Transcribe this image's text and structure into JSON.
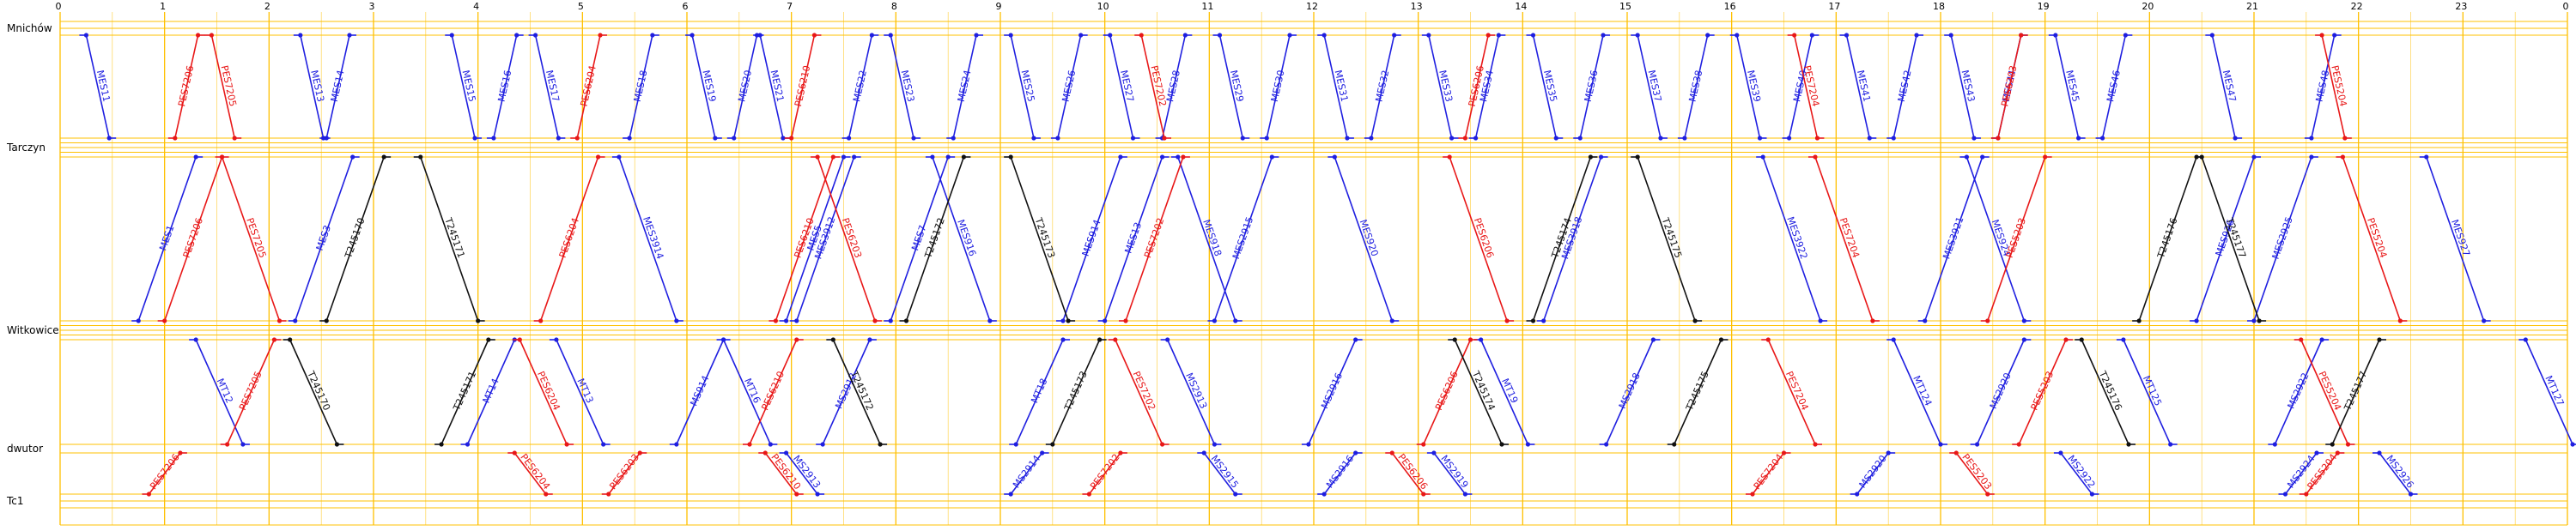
{
  "stations": [
    {
      "name": "Mnichów",
      "tracks": 3
    },
    {
      "name": "Tarczyn",
      "tracks": 5
    },
    {
      "name": "Witkowice",
      "tracks": 5
    },
    {
      "name": "dwutor",
      "tracks": 2
    },
    {
      "name": "Tc1",
      "tracks": 3
    }
  ],
  "hours": [
    "0",
    "1",
    "2",
    "3",
    "4",
    "5",
    "6",
    "7",
    "8",
    "9",
    "10",
    "11",
    "12",
    "13",
    "14",
    "15",
    "16",
    "17",
    "18",
    "19",
    "20",
    "21",
    "22",
    "23",
    "0"
  ],
  "colors": {
    "grid": "#ffc000",
    "blue": "#1f1fe0",
    "red": "#e81818",
    "black": "#111111"
  },
  "trains": [
    {
      "label": "MES11",
      "color": "blue",
      "dir": "down",
      "seg": "s0",
      "t": 0.25
    },
    {
      "label": "MES13",
      "color": "blue",
      "dir": "down",
      "seg": "s0",
      "t": 2.3
    },
    {
      "label": "MES14",
      "color": "blue",
      "dir": "up",
      "seg": "s0",
      "t": 2.55
    },
    {
      "label": "MES15",
      "color": "blue",
      "dir": "down",
      "seg": "s0",
      "t": 3.75
    },
    {
      "label": "MES16",
      "color": "blue",
      "dir": "up",
      "seg": "s0",
      "t": 4.15
    },
    {
      "label": "MES17",
      "color": "blue",
      "dir": "down",
      "seg": "s0",
      "t": 4.55
    },
    {
      "label": "MES18",
      "color": "blue",
      "dir": "up",
      "seg": "s0",
      "t": 5.45
    },
    {
      "label": "MES19",
      "color": "blue",
      "dir": "down",
      "seg": "s0",
      "t": 6.05
    },
    {
      "label": "MES20",
      "color": "blue",
      "dir": "up",
      "seg": "s0",
      "t": 6.45
    },
    {
      "label": "MES21",
      "color": "blue",
      "dir": "down",
      "seg": "s0",
      "t": 6.7
    },
    {
      "label": "MES22",
      "color": "blue",
      "dir": "up",
      "seg": "s0",
      "t": 7.55
    },
    {
      "label": "MES23",
      "color": "blue",
      "dir": "down",
      "seg": "s0",
      "t": 7.95
    },
    {
      "label": "MES24",
      "color": "blue",
      "dir": "up",
      "seg": "s0",
      "t": 8.55
    },
    {
      "label": "MES25",
      "color": "blue",
      "dir": "down",
      "seg": "s0",
      "t": 9.1
    },
    {
      "label": "MES26",
      "color": "blue",
      "dir": "up",
      "seg": "s0",
      "t": 9.55
    },
    {
      "label": "MES27",
      "color": "blue",
      "dir": "down",
      "seg": "s0",
      "t": 10.05
    },
    {
      "label": "MES28",
      "color": "blue",
      "dir": "up",
      "seg": "s0",
      "t": 10.55
    },
    {
      "label": "MES29",
      "color": "blue",
      "dir": "down",
      "seg": "s0",
      "t": 11.1
    },
    {
      "label": "MES30",
      "color": "blue",
      "dir": "up",
      "seg": "s0",
      "t": 11.55
    },
    {
      "label": "MES31",
      "color": "blue",
      "dir": "down",
      "seg": "s0",
      "t": 12.1
    },
    {
      "label": "MES32",
      "color": "blue",
      "dir": "up",
      "seg": "s0",
      "t": 12.55
    },
    {
      "label": "MES33",
      "color": "blue",
      "dir": "down",
      "seg": "s0",
      "t": 13.1
    },
    {
      "label": "MES34",
      "color": "blue",
      "dir": "up",
      "seg": "s0",
      "t": 13.55
    },
    {
      "label": "MES35",
      "color": "blue",
      "dir": "down",
      "seg": "s0",
      "t": 14.1
    },
    {
      "label": "MES36",
      "color": "blue",
      "dir": "up",
      "seg": "s0",
      "t": 14.55
    },
    {
      "label": "MES37",
      "color": "blue",
      "dir": "down",
      "seg": "s0",
      "t": 15.1
    },
    {
      "label": "MES38",
      "color": "blue",
      "dir": "up",
      "seg": "s0",
      "t": 15.55
    },
    {
      "label": "MES39",
      "color": "blue",
      "dir": "down",
      "seg": "s0",
      "t": 16.05
    },
    {
      "label": "MES40",
      "color": "blue",
      "dir": "up",
      "seg": "s0",
      "t": 16.55
    },
    {
      "label": "MES41",
      "color": "blue",
      "dir": "down",
      "seg": "s0",
      "t": 17.1
    },
    {
      "label": "MES42",
      "color": "blue",
      "dir": "up",
      "seg": "s0",
      "t": 17.55
    },
    {
      "label": "MES43",
      "color": "blue",
      "dir": "down",
      "seg": "s0",
      "t": 18.1
    },
    {
      "label": "MES44",
      "color": "blue",
      "dir": "up",
      "seg": "s0",
      "t": 18.55
    },
    {
      "label": "MES45",
      "color": "blue",
      "dir": "down",
      "seg": "s0",
      "t": 19.1
    },
    {
      "label": "MES46",
      "color": "blue",
      "dir": "up",
      "seg": "s0",
      "t": 19.55
    },
    {
      "label": "MES47",
      "color": "blue",
      "dir": "down",
      "seg": "s0",
      "t": 20.6
    },
    {
      "label": "MES48",
      "color": "blue",
      "dir": "up",
      "seg": "s0",
      "t": 21.55
    },
    {
      "label": "PES7206",
      "color": "red",
      "dir": "up",
      "seg": "s0",
      "t": 1.1
    },
    {
      "label": "PES7205",
      "color": "red",
      "dir": "down",
      "seg": "s0",
      "t": 1.45
    },
    {
      "label": "PES6204",
      "color": "red",
      "dir": "up",
      "seg": "s0",
      "t": 4.95
    },
    {
      "label": "PES6210",
      "color": "red",
      "dir": "up",
      "seg": "s0",
      "t": 7.0
    },
    {
      "label": "PES7202",
      "color": "red",
      "dir": "down",
      "seg": "s0",
      "t": 10.35
    },
    {
      "label": "PES6206",
      "color": "red",
      "dir": "up",
      "seg": "s0",
      "t": 13.45
    },
    {
      "label": "PES7204",
      "color": "red",
      "dir": "down",
      "seg": "s0",
      "t": 16.6
    },
    {
      "label": "PES6203",
      "color": "red",
      "dir": "up",
      "seg": "s0",
      "t": 18.55
    },
    {
      "label": "PES5204",
      "color": "red",
      "dir": "down",
      "seg": "s0",
      "t": 21.65
    },
    {
      "label": "MES1",
      "color": "blue",
      "dir": "up",
      "seg": "s1",
      "t": 0.75
    },
    {
      "label": "MES3",
      "color": "blue",
      "dir": "up",
      "seg": "s1",
      "t": 2.25
    },
    {
      "label": "MES3914",
      "color": "blue",
      "dir": "down",
      "seg": "s1",
      "t": 5.35
    },
    {
      "label": "MES5",
      "color": "blue",
      "dir": "up",
      "seg": "s1",
      "t": 6.95
    },
    {
      "label": "MES3912",
      "color": "blue",
      "dir": "up",
      "seg": "s1",
      "t": 7.05
    },
    {
      "label": "MES7",
      "color": "blue",
      "dir": "up",
      "seg": "s1",
      "t": 7.95
    },
    {
      "label": "MES916",
      "color": "blue",
      "dir": "down",
      "seg": "s1",
      "t": 8.35
    },
    {
      "label": "MES914",
      "color": "blue",
      "dir": "up",
      "seg": "s1",
      "t": 9.6
    },
    {
      "label": "MES13",
      "color": "blue",
      "dir": "up",
      "seg": "s1",
      "t": 10.0
    },
    {
      "label": "MES918",
      "color": "blue",
      "dir": "down",
      "seg": "s1",
      "t": 10.7
    },
    {
      "label": "MES2915",
      "color": "blue",
      "dir": "up",
      "seg": "s1",
      "t": 11.05
    },
    {
      "label": "MES920",
      "color": "blue",
      "dir": "down",
      "seg": "s1",
      "t": 12.2
    },
    {
      "label": "MES3918",
      "color": "blue",
      "dir": "up",
      "seg": "s1",
      "t": 14.2
    },
    {
      "label": "MES3922",
      "color": "blue",
      "dir": "down",
      "seg": "s1",
      "t": 16.3
    },
    {
      "label": "MES3921",
      "color": "blue",
      "dir": "up",
      "seg": "s1",
      "t": 17.85
    },
    {
      "label": "MES924",
      "color": "blue",
      "dir": "down",
      "seg": "s1",
      "t": 18.25
    },
    {
      "label": "MES926",
      "color": "blue",
      "dir": "up",
      "seg": "s1",
      "t": 20.45
    },
    {
      "label": "MES2925",
      "color": "blue",
      "dir": "up",
      "seg": "s1",
      "t": 21.0
    },
    {
      "label": "MES927",
      "color": "blue",
      "dir": "down",
      "seg": "s1",
      "t": 22.65
    },
    {
      "label": "PES7206",
      "color": "red",
      "dir": "up",
      "seg": "s1",
      "t": 1.0
    },
    {
      "label": "PES7205",
      "color": "red",
      "dir": "down",
      "seg": "s1",
      "t": 1.55
    },
    {
      "label": "PES6204",
      "color": "red",
      "dir": "up",
      "seg": "s1",
      "t": 4.6
    },
    {
      "label": "PES6210",
      "color": "red",
      "dir": "up",
      "seg": "s1",
      "t": 6.85
    },
    {
      "label": "PES6203",
      "color": "red",
      "dir": "down",
      "seg": "s1",
      "t": 7.25
    },
    {
      "label": "PES7202",
      "color": "red",
      "dir": "up",
      "seg": "s1",
      "t": 10.2
    },
    {
      "label": "PES6206",
      "color": "red",
      "dir": "down",
      "seg": "s1",
      "t": 13.3
    },
    {
      "label": "PES7204",
      "color": "red",
      "dir": "down",
      "seg": "s1",
      "t": 16.8
    },
    {
      "label": "PES5203",
      "color": "red",
      "dir": "up",
      "seg": "s1",
      "t": 18.45
    },
    {
      "label": "PES5204",
      "color": "red",
      "dir": "down",
      "seg": "s1",
      "t": 21.85
    },
    {
      "label": "T245170",
      "color": "black",
      "dir": "up",
      "seg": "s1",
      "t": 2.55
    },
    {
      "label": "T245171",
      "color": "black",
      "dir": "down",
      "seg": "s1",
      "t": 3.45
    },
    {
      "label": "T245172",
      "color": "black",
      "dir": "up",
      "seg": "s1",
      "t": 8.1
    },
    {
      "label": "T245173",
      "color": "black",
      "dir": "down",
      "seg": "s1",
      "t": 9.1
    },
    {
      "label": "T245174",
      "color": "black",
      "dir": "up",
      "seg": "s1",
      "t": 14.1
    },
    {
      "label": "T245175",
      "color": "black",
      "dir": "down",
      "seg": "s1",
      "t": 15.1
    },
    {
      "label": "T245176",
      "color": "black",
      "dir": "up",
      "seg": "s1",
      "t": 19.9
    },
    {
      "label": "T245177",
      "color": "black",
      "dir": "down",
      "seg": "s1",
      "t": 20.5
    },
    {
      "label": "MT12",
      "color": "blue",
      "dir": "down",
      "seg": "s2",
      "t": 1.3
    },
    {
      "label": "MT14",
      "color": "blue",
      "dir": "up",
      "seg": "s2",
      "t": 3.9
    },
    {
      "label": "MT13",
      "color": "blue",
      "dir": "down",
      "seg": "s2",
      "t": 4.75
    },
    {
      "label": "MS914",
      "color": "blue",
      "dir": "up",
      "seg": "s2",
      "t": 5.9
    },
    {
      "label": "MT16",
      "color": "blue",
      "dir": "down",
      "seg": "s2",
      "t": 6.35
    },
    {
      "label": "MS2912",
      "color": "blue",
      "dir": "up",
      "seg": "s2",
      "t": 7.3
    },
    {
      "label": "MT18",
      "color": "blue",
      "dir": "up",
      "seg": "s2",
      "t": 9.15
    },
    {
      "label": "MS2913",
      "color": "blue",
      "dir": "down",
      "seg": "s2",
      "t": 10.6
    },
    {
      "label": "MS2916",
      "color": "blue",
      "dir": "up",
      "seg": "s2",
      "t": 11.95
    },
    {
      "label": "MT19",
      "color": "blue",
      "dir": "down",
      "seg": "s2",
      "t": 13.6
    },
    {
      "label": "MS2918",
      "color": "blue",
      "dir": "up",
      "seg": "s2",
      "t": 14.8
    },
    {
      "label": "MT124",
      "color": "blue",
      "dir": "down",
      "seg": "s2",
      "t": 17.55
    },
    {
      "label": "MS2920",
      "color": "blue",
      "dir": "up",
      "seg": "s2",
      "t": 18.35
    },
    {
      "label": "MT125",
      "color": "blue",
      "dir": "down",
      "seg": "s2",
      "t": 19.75
    },
    {
      "label": "MS2922",
      "color": "blue",
      "dir": "up",
      "seg": "s2",
      "t": 21.2
    },
    {
      "label": "MT127",
      "color": "blue",
      "dir": "down",
      "seg": "s2",
      "t": 23.6
    },
    {
      "label": "PES7205",
      "color": "red",
      "dir": "up",
      "seg": "s2",
      "t": 1.6
    },
    {
      "label": "PES6204",
      "color": "red",
      "dir": "down",
      "seg": "s2",
      "t": 4.4
    },
    {
      "label": "PES6210",
      "color": "red",
      "dir": "up",
      "seg": "s2",
      "t": 6.6
    },
    {
      "label": "PES7202",
      "color": "red",
      "dir": "down",
      "seg": "s2",
      "t": 10.1
    },
    {
      "label": "PES6206",
      "color": "red",
      "dir": "up",
      "seg": "s2",
      "t": 13.05
    },
    {
      "label": "PES7204",
      "color": "red",
      "dir": "down",
      "seg": "s2",
      "t": 16.35
    },
    {
      "label": "PES5203",
      "color": "red",
      "dir": "up",
      "seg": "s2",
      "t": 18.75
    },
    {
      "label": "PES5204",
      "color": "red",
      "dir": "down",
      "seg": "s2",
      "t": 21.45
    },
    {
      "label": "T245170",
      "color": "black",
      "dir": "down",
      "seg": "s2",
      "t": 2.2
    },
    {
      "label": "T245171",
      "color": "black",
      "dir": "up",
      "seg": "s2",
      "t": 3.65
    },
    {
      "label": "T245172",
      "color": "black",
      "dir": "down",
      "seg": "s2",
      "t": 7.4
    },
    {
      "label": "T245173",
      "color": "black",
      "dir": "up",
      "seg": "s2",
      "t": 9.5
    },
    {
      "label": "T245174",
      "color": "black",
      "dir": "down",
      "seg": "s2",
      "t": 13.35
    },
    {
      "label": "T245175",
      "color": "black",
      "dir": "up",
      "seg": "s2",
      "t": 15.45
    },
    {
      "label": "T245176",
      "color": "black",
      "dir": "down",
      "seg": "s2",
      "t": 19.35
    },
    {
      "label": "T245177",
      "color": "black",
      "dir": "up",
      "seg": "s2",
      "t": 21.75
    },
    {
      "label": "MS2913",
      "color": "blue",
      "dir": "down",
      "seg": "s3",
      "t": 6.95
    },
    {
      "label": "MS2914",
      "color": "blue",
      "dir": "up",
      "seg": "s3",
      "t": 9.1
    },
    {
      "label": "MS2915",
      "color": "blue",
      "dir": "down",
      "seg": "s3",
      "t": 10.95
    },
    {
      "label": "MS2916",
      "color": "blue",
      "dir": "up",
      "seg": "s3",
      "t": 12.1
    },
    {
      "label": "MS2919",
      "color": "blue",
      "dir": "down",
      "seg": "s3",
      "t": 13.15
    },
    {
      "label": "MS2920",
      "color": "blue",
      "dir": "up",
      "seg": "s3",
      "t": 17.2
    },
    {
      "label": "MS2922",
      "color": "blue",
      "dir": "down",
      "seg": "s3",
      "t": 19.15
    },
    {
      "label": "MS2924",
      "color": "blue",
      "dir": "up",
      "seg": "s3",
      "t": 21.3
    },
    {
      "label": "MS2926",
      "color": "blue",
      "dir": "down",
      "seg": "s3",
      "t": 22.2
    },
    {
      "label": "PES7206",
      "color": "red",
      "dir": "up",
      "seg": "s3",
      "t": 0.85
    },
    {
      "label": "PES6204",
      "color": "red",
      "dir": "down",
      "seg": "s3",
      "t": 4.35
    },
    {
      "label": "PES6203",
      "color": "red",
      "dir": "up",
      "seg": "s3",
      "t": 5.25
    },
    {
      "label": "PES6210",
      "color": "red",
      "dir": "down",
      "seg": "s3",
      "t": 6.75
    },
    {
      "label": "PES7202",
      "color": "red",
      "dir": "up",
      "seg": "s3",
      "t": 9.85
    },
    {
      "label": "PES6206",
      "color": "red",
      "dir": "down",
      "seg": "s3",
      "t": 12.75
    },
    {
      "label": "PES7204",
      "color": "red",
      "dir": "up",
      "seg": "s3",
      "t": 16.2
    },
    {
      "label": "PES5203",
      "color": "red",
      "dir": "down",
      "seg": "s3",
      "t": 18.15
    },
    {
      "label": "PES5204",
      "color": "red",
      "dir": "up",
      "seg": "s3",
      "t": 21.5
    }
  ]
}
